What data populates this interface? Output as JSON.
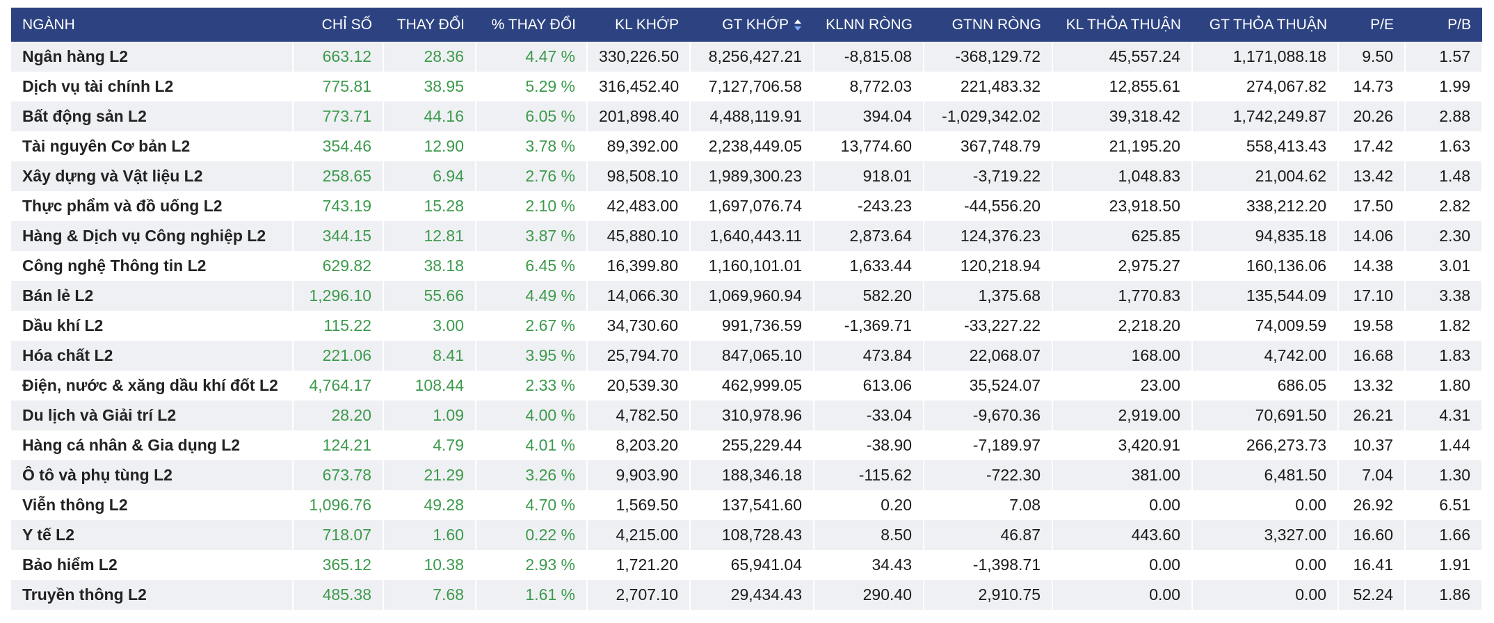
{
  "table": {
    "headers": [
      "NGÀNH",
      "CHỈ SỐ",
      "THAY ĐỔI",
      "% THAY ĐỔI",
      "KL KHỚP",
      "GT KHỚP",
      "KLNN RÒNG",
      "GTNN RÒNG",
      "KL THỎA THUẬN",
      "GT THỎA THUẬN",
      "P/E",
      "P/B"
    ],
    "rows": [
      [
        "Ngân hàng L2",
        "663.12",
        "28.36",
        "4.47 %",
        "330,226.50",
        "8,256,427.21",
        "-8,815.08",
        "-368,129.72",
        "45,557.24",
        "1,171,088.18",
        "9.50",
        "1.57"
      ],
      [
        "Dịch vụ tài chính L2",
        "775.81",
        "38.95",
        "5.29 %",
        "316,452.40",
        "7,127,706.58",
        "8,772.03",
        "221,483.32",
        "12,855.61",
        "274,067.82",
        "14.73",
        "1.99"
      ],
      [
        "Bất động sản L2",
        "773.71",
        "44.16",
        "6.05 %",
        "201,898.40",
        "4,488,119.91",
        "394.04",
        "-1,029,342.02",
        "39,318.42",
        "1,742,249.87",
        "20.26",
        "2.88"
      ],
      [
        "Tài nguyên Cơ bản L2",
        "354.46",
        "12.90",
        "3.78 %",
        "89,392.00",
        "2,238,449.05",
        "13,774.60",
        "367,748.79",
        "21,195.20",
        "558,413.43",
        "17.42",
        "1.63"
      ],
      [
        "Xây dựng và Vật liệu L2",
        "258.65",
        "6.94",
        "2.76 %",
        "98,508.10",
        "1,989,300.23",
        "918.01",
        "-3,719.22",
        "1,048.83",
        "21,004.62",
        "13.42",
        "1.48"
      ],
      [
        "Thực phẩm và đồ uống L2",
        "743.19",
        "15.28",
        "2.10 %",
        "42,483.00",
        "1,697,076.74",
        "-243.23",
        "-44,556.20",
        "23,918.50",
        "338,212.20",
        "17.50",
        "2.82"
      ],
      [
        "Hàng & Dịch vụ Công nghiệp L2",
        "344.15",
        "12.81",
        "3.87 %",
        "45,880.10",
        "1,640,443.11",
        "2,873.64",
        "124,376.23",
        "625.85",
        "94,835.18",
        "14.06",
        "2.30"
      ],
      [
        "Công nghệ Thông tin L2",
        "629.82",
        "38.18",
        "6.45 %",
        "16,399.80",
        "1,160,101.01",
        "1,633.44",
        "120,218.94",
        "2,975.27",
        "160,136.06",
        "14.38",
        "3.01"
      ],
      [
        "Bán lẻ L2",
        "1,296.10",
        "55.66",
        "4.49 %",
        "14,066.30",
        "1,069,960.94",
        "582.20",
        "1,375.68",
        "1,770.83",
        "135,544.09",
        "17.10",
        "3.38"
      ],
      [
        "Dầu khí L2",
        "115.22",
        "3.00",
        "2.67 %",
        "34,730.60",
        "991,736.59",
        "-1,369.71",
        "-33,227.22",
        "2,218.20",
        "74,009.59",
        "19.58",
        "1.82"
      ],
      [
        "Hóa chất L2",
        "221.06",
        "8.41",
        "3.95 %",
        "25,794.70",
        "847,065.10",
        "473.84",
        "22,068.07",
        "168.00",
        "4,742.00",
        "16.68",
        "1.83"
      ],
      [
        "Điện, nước & xăng dầu khí đốt L2",
        "4,764.17",
        "108.44",
        "2.33 %",
        "20,539.30",
        "462,999.05",
        "613.06",
        "35,524.07",
        "23.00",
        "686.05",
        "13.32",
        "1.80"
      ],
      [
        "Du lịch và Giải trí L2",
        "28.20",
        "1.09",
        "4.00 %",
        "4,782.50",
        "310,978.96",
        "-33.04",
        "-9,670.36",
        "2,919.00",
        "70,691.50",
        "26.21",
        "4.31"
      ],
      [
        "Hàng cá nhân & Gia dụng L2",
        "124.21",
        "4.79",
        "4.01 %",
        "8,203.20",
        "255,229.44",
        "-38.90",
        "-7,189.97",
        "3,420.91",
        "266,273.73",
        "10.37",
        "1.44"
      ],
      [
        "Ô tô và phụ tùng L2",
        "673.78",
        "21.29",
        "3.26 %",
        "9,903.90",
        "188,346.18",
        "-115.62",
        "-722.30",
        "381.00",
        "6,481.50",
        "7.04",
        "1.30"
      ],
      [
        "Viễn thông L2",
        "1,096.76",
        "49.28",
        "4.70 %",
        "1,569.50",
        "137,541.60",
        "0.20",
        "7.08",
        "0.00",
        "0.00",
        "26.92",
        "6.51"
      ],
      [
        "Y tế L2",
        "718.07",
        "1.60",
        "0.22 %",
        "4,215.00",
        "108,728.43",
        "8.50",
        "46.87",
        "443.60",
        "3,327.00",
        "16.60",
        "1.66"
      ],
      [
        "Bảo hiểm L2",
        "365.12",
        "10.38",
        "2.93 %",
        "1,721.20",
        "65,941.04",
        "34.43",
        "-1,398.71",
        "0.00",
        "0.00",
        "16.41",
        "1.91"
      ],
      [
        "Truyền thông L2",
        "485.38",
        "7.68",
        "1.61 %",
        "2,707.10",
        "29,434.43",
        "290.40",
        "2,910.75",
        "0.00",
        "0.00",
        "52.24",
        "1.86"
      ]
    ]
  }
}
